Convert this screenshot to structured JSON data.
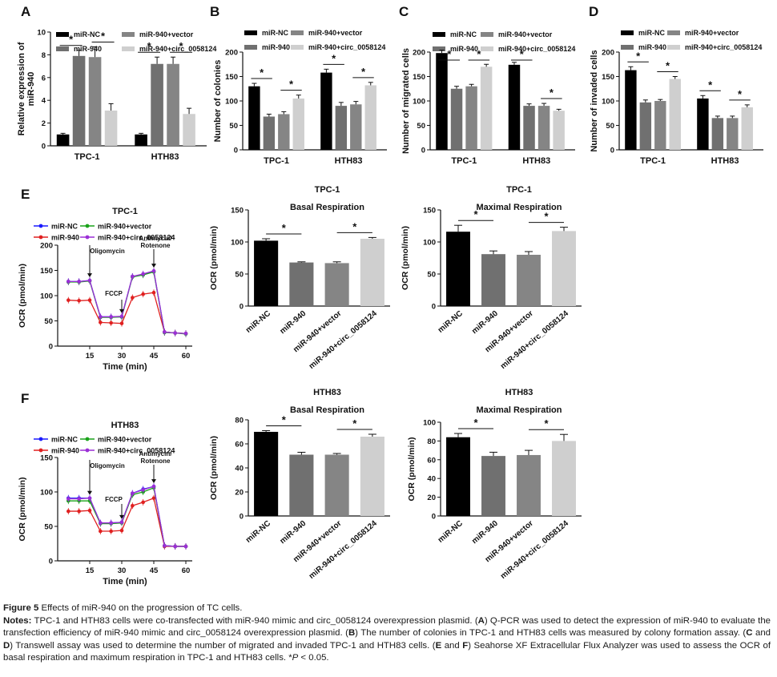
{
  "colors": {
    "miR-NC": "#000000",
    "miR-940": "#707070",
    "miR-940+vector": "#858585",
    "miR-940+circ_0058124": "#cfcfcf",
    "line_NC": "#1a1aff",
    "line_940": "#e02020",
    "line_vector": "#1aa31a",
    "line_circ": "#9b2fd6"
  },
  "legend_labels": [
    "miR-NC",
    "miR-940+vector",
    "miR-940",
    "miR-940+circ_0058124"
  ],
  "groups": [
    "miR-NC",
    "miR-940",
    "miR-940+vector",
    "miR-940+circ_0058124"
  ],
  "chart_data": [
    {
      "panel": "A",
      "type": "bar",
      "title": "",
      "ylabel": "Relative expression of miR-940",
      "xlabel": "",
      "ylim": [
        0,
        10
      ],
      "yticks": [
        0,
        2,
        4,
        6,
        8,
        10
      ],
      "categories": [
        "TPC-1",
        "HTH83"
      ],
      "series": [
        {
          "name": "miR-NC",
          "values": [
            1.0,
            1.0
          ],
          "errors": [
            0.1,
            0.1
          ]
        },
        {
          "name": "miR-940",
          "values": [
            7.9,
            7.2
          ],
          "errors": [
            0.5,
            0.6
          ]
        },
        {
          "name": "miR-940+vector",
          "values": [
            7.8,
            7.2
          ],
          "errors": [
            0.9,
            0.6
          ]
        },
        {
          "name": "miR-940+circ_0058124",
          "values": [
            3.1,
            2.8
          ],
          "errors": [
            0.6,
            0.5
          ]
        }
      ],
      "significance": [
        "*",
        "*",
        "*",
        "*"
      ]
    },
    {
      "panel": "B",
      "type": "bar",
      "title": "",
      "ylabel": "Number of colonies",
      "xlabel": "",
      "ylim": [
        0,
        200
      ],
      "yticks": [
        0,
        50,
        100,
        150,
        200
      ],
      "categories": [
        "TPC-1",
        "HTH83"
      ],
      "series": [
        {
          "name": "miR-NC",
          "values": [
            130,
            158
          ],
          "errors": [
            6,
            7
          ]
        },
        {
          "name": "miR-940",
          "values": [
            68,
            90
          ],
          "errors": [
            5,
            7
          ]
        },
        {
          "name": "miR-940+vector",
          "values": [
            73,
            93
          ],
          "errors": [
            5,
            6
          ]
        },
        {
          "name": "miR-940+circ_0058124",
          "values": [
            105,
            132
          ],
          "errors": [
            7,
            6
          ]
        }
      ],
      "significance": [
        "*",
        "*",
        "*",
        "*"
      ]
    },
    {
      "panel": "C",
      "type": "bar",
      "title": "",
      "ylabel": "Number of migrated cells",
      "xlabel": "",
      "ylim": [
        0,
        200
      ],
      "yticks": [
        0,
        50,
        100,
        150,
        200
      ],
      "categories": [
        "TPC-1",
        "HTH83"
      ],
      "series": [
        {
          "name": "miR-NC",
          "values": [
            198,
            174
          ],
          "errors": [
            6,
            5
          ]
        },
        {
          "name": "miR-940",
          "values": [
            125,
            90
          ],
          "errors": [
            5,
            4
          ]
        },
        {
          "name": "miR-940+vector",
          "values": [
            130,
            90
          ],
          "errors": [
            4,
            5
          ]
        },
        {
          "name": "miR-940+circ_0058124",
          "values": [
            170,
            80
          ],
          "errors": [
            5,
            3
          ]
        }
      ],
      "significance": [
        "*",
        "*",
        "*",
        "*"
      ]
    },
    {
      "panel": "D",
      "type": "bar",
      "title": "",
      "ylabel": "Number of invaded cells",
      "xlabel": "",
      "ylim": [
        0,
        200
      ],
      "yticks": [
        0,
        50,
        100,
        150,
        200
      ],
      "categories": [
        "TPC-1",
        "HTH83"
      ],
      "series": [
        {
          "name": "miR-NC",
          "values": [
            163,
            105
          ],
          "errors": [
            7,
            6
          ]
        },
        {
          "name": "miR-940",
          "values": [
            97,
            65
          ],
          "errors": [
            5,
            4
          ]
        },
        {
          "name": "miR-940+vector",
          "values": [
            100,
            65
          ],
          "errors": [
            3,
            4
          ]
        },
        {
          "name": "miR-940+circ_0058124",
          "values": [
            145,
            87
          ],
          "errors": [
            5,
            5
          ]
        }
      ],
      "significance": [
        "*",
        "*",
        "*",
        "*"
      ]
    },
    {
      "panel": "E",
      "type": "line",
      "title": "TPC-1",
      "ylabel": "OCR (pmol/min)",
      "xlabel": "Time (min)",
      "xlim": [
        0,
        63
      ],
      "ylim": [
        0,
        200
      ],
      "xticks": [
        15,
        30,
        45,
        60
      ],
      "yticks": [
        0,
        50,
        100,
        150,
        200
      ],
      "x": [
        5,
        10,
        15,
        20,
        25,
        30,
        35,
        40,
        45,
        50,
        55,
        60
      ],
      "series": [
        {
          "name": "miR-NC",
          "values": [
            128,
            128,
            130,
            58,
            58,
            58,
            138,
            142,
            148,
            28,
            26,
            25
          ]
        },
        {
          "name": "miR-940",
          "values": [
            91,
            90,
            91,
            47,
            46,
            45,
            96,
            103,
            106,
            28,
            26,
            25
          ]
        },
        {
          "name": "miR-940+vector",
          "values": [
            127,
            127,
            129,
            57,
            57,
            58,
            137,
            141,
            147,
            27,
            26,
            24
          ]
        },
        {
          "name": "miR-940+circ_0058124",
          "values": [
            128,
            128,
            130,
            58,
            58,
            59,
            138,
            143,
            149,
            28,
            26,
            25
          ]
        }
      ],
      "annotations": [
        {
          "label": "Oligomycin",
          "x": 15
        },
        {
          "label": "FCCP",
          "x": 30
        },
        {
          "label": "Antimycin/ Rotenone",
          "x": 45
        }
      ]
    },
    {
      "panel": "E",
      "type": "bar",
      "title": "TPC-1",
      "subtitle": "Basal Respiration",
      "ylabel": "OCR (pmol/min)",
      "ylim": [
        0,
        150
      ],
      "yticks": [
        0,
        50,
        100,
        150
      ],
      "categories": [
        "miR-NC",
        "miR-940",
        "miR-940+vector",
        "miR-940+circ_0058124"
      ],
      "values": [
        102,
        68,
        67,
        105
      ],
      "errors": [
        3,
        1,
        2,
        2
      ],
      "significance": [
        "*",
        "*"
      ]
    },
    {
      "panel": "E",
      "type": "bar",
      "title": "TPC-1",
      "subtitle": "Maximal Respiration",
      "ylabel": "OCR (pmol/min)",
      "ylim": [
        0,
        150
      ],
      "yticks": [
        0,
        50,
        100,
        150
      ],
      "categories": [
        "miR-NC",
        "miR-940",
        "miR-940+vector",
        "miR-940+circ_0058124"
      ],
      "values": [
        116,
        81,
        80,
        117
      ],
      "errors": [
        10,
        5,
        5,
        6
      ],
      "significance": [
        "*",
        "*"
      ]
    },
    {
      "panel": "F",
      "type": "line",
      "title": "HTH83",
      "ylabel": "OCR (pmol/min)",
      "xlabel": "Time (min)",
      "xlim": [
        0,
        63
      ],
      "ylim": [
        0,
        150
      ],
      "xticks": [
        15,
        30,
        45,
        60
      ],
      "yticks": [
        0,
        50,
        100,
        150
      ],
      "x": [
        5,
        10,
        15,
        20,
        25,
        30,
        35,
        40,
        45,
        50,
        55,
        60
      ],
      "series": [
        {
          "name": "miR-NC",
          "values": [
            91,
            91,
            91,
            55,
            55,
            56,
            98,
            104,
            108,
            22,
            21,
            21
          ]
        },
        {
          "name": "miR-940",
          "values": [
            72,
            72,
            73,
            43,
            43,
            44,
            80,
            85,
            91,
            21,
            21,
            21
          ]
        },
        {
          "name": "miR-940+vector",
          "values": [
            87,
            87,
            87,
            54,
            54,
            55,
            96,
            100,
            106,
            22,
            21,
            21
          ]
        },
        {
          "name": "miR-940+circ_0058124",
          "values": [
            90,
            90,
            91,
            55,
            55,
            56,
            98,
            103,
            108,
            22,
            21,
            21
          ]
        }
      ],
      "annotations": [
        {
          "label": "Oligomycin",
          "x": 15
        },
        {
          "label": "FCCP",
          "x": 30
        },
        {
          "label": "Antimycin/ Rotenone",
          "x": 45
        }
      ]
    },
    {
      "panel": "F",
      "type": "bar",
      "title": "HTH83",
      "subtitle": "Basal Respiration",
      "ylabel": "OCR (pmol/min)",
      "ylim": [
        0,
        80
      ],
      "yticks": [
        0,
        20,
        40,
        60,
        80
      ],
      "categories": [
        "miR-NC",
        "miR-940",
        "miR-940+vector",
        "miR-940+circ_0058124"
      ],
      "values": [
        70,
        51,
        51,
        66
      ],
      "errors": [
        1,
        2,
        1,
        2
      ],
      "significance": [
        "*",
        "*"
      ]
    },
    {
      "panel": "F",
      "type": "bar",
      "title": "HTH83",
      "subtitle": "Maximal Respiration",
      "ylabel": "OCR (pmol/min)",
      "ylim": [
        0,
        100
      ],
      "yticks": [
        0,
        20,
        40,
        60,
        80,
        100
      ],
      "categories": [
        "miR-NC",
        "miR-940",
        "miR-940+vector",
        "miR-940+circ_0058124"
      ],
      "values": [
        84,
        64,
        65,
        80
      ],
      "errors": [
        4,
        4,
        5,
        7
      ],
      "significance": [
        "*",
        "*"
      ]
    }
  ],
  "caption": {
    "title": "Figure 5",
    "title_text": " Effects of miR-940 on the progression of TC cells.",
    "notes_label": "Notes:",
    "p1": " TPC-1 and HTH83 cells were co-transfected with miR-940 mimic and circ_0058124 overexpression plasmid. (",
    "A": "A",
    "p2": ") Q-PCR was used to detect the expression of miR-940 to evaluate the transfection efficiency of miR-940 mimic and circ_0058124 overexpression plasmid. (",
    "B": "B",
    "p3": ") The number of colonies in TPC-1 and HTH83 cells was measured by colony formation assay. (",
    "C": "C",
    "and1": " and ",
    "D": "D",
    "p4": ") Transwell assay was used to determine the number of migrated and invaded TPC-1 and HTH83 cells. (",
    "E": "E",
    "and2": " and ",
    "F": "F",
    "p5": ") Seahorse XF Extracellular Flux Analyzer was used to assess the OCR of basal respiration and maximum respiration in TPC-1 and HTH83 cells. *",
    "P": "P",
    "p6": " < 0.05."
  }
}
